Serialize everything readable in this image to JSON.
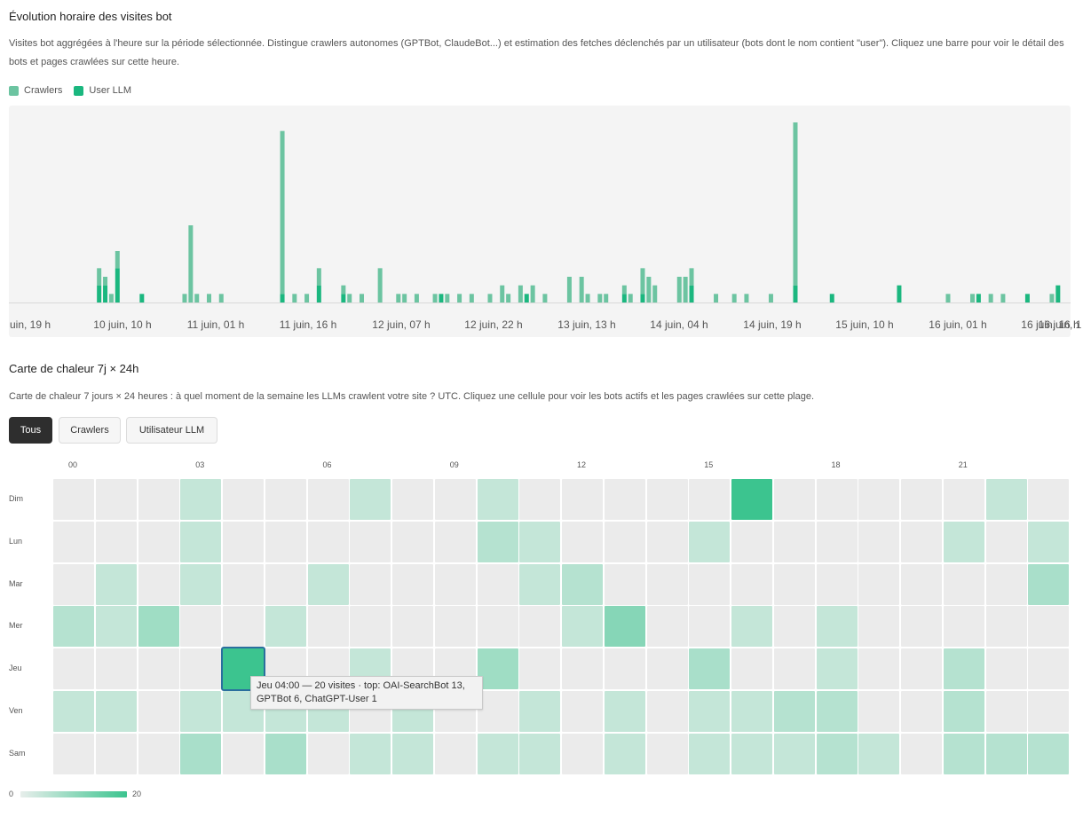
{
  "hourly": {
    "title": "Évolution horaire des visites bot",
    "description": "Visites bot aggrégées à l'heure sur la période sélectionnée. Distingue crawlers autonomes (GPTBot, ClaudeBot...) et estimation des fetches déclenchés par un utilisateur (bots dont le nom contient \"user\"). Cliquez une barre pour voir le détail des bots et pages crawlées sur cette heure.",
    "legend": [
      {
        "label": "Crawlers",
        "color": "#6cc4a1"
      },
      {
        "label": "User LLM",
        "color": "#1bb77f"
      }
    ],
    "ticks": [
      "uin, 19 h",
      "10 juin, 10 h",
      "11 juin, 01 h",
      "11 juin, 16 h",
      "12 juin, 07 h",
      "12 juin, 22 h",
      "13 juin, 13 h",
      "14 juin, 04 h",
      "14 juin, 19 h",
      "15 juin, 10 h",
      "16 juin, 01 h",
      "16 juin, 16 h",
      "16 juin, 1"
    ]
  },
  "chart_data": {
    "type": "bar",
    "title": "Évolution horaire des visites bot",
    "stacked": true,
    "x_unit": "hour index from 9 juin 19 h",
    "hours_total": 170,
    "series": [
      {
        "name": "Crawlers",
        "color": "#6cc4a1",
        "points": [
          [
            7,
            2
          ],
          [
            8,
            1
          ],
          [
            9,
            1
          ],
          [
            10,
            2
          ],
          [
            21,
            1
          ],
          [
            22,
            9
          ],
          [
            23,
            1
          ],
          [
            25,
            1
          ],
          [
            27,
            1
          ],
          [
            37,
            19
          ],
          [
            39,
            1
          ],
          [
            41,
            1
          ],
          [
            43,
            2
          ],
          [
            47,
            1
          ],
          [
            48,
            1
          ],
          [
            50,
            1
          ],
          [
            53,
            4
          ],
          [
            56,
            1
          ],
          [
            57,
            1
          ],
          [
            59,
            1
          ],
          [
            62,
            1
          ],
          [
            64,
            1
          ],
          [
            66,
            1
          ],
          [
            68,
            1
          ],
          [
            71,
            1
          ],
          [
            73,
            2
          ],
          [
            74,
            1
          ],
          [
            76,
            2
          ],
          [
            78,
            2
          ],
          [
            80,
            1
          ],
          [
            84,
            3
          ],
          [
            86,
            3
          ],
          [
            87,
            1
          ],
          [
            89,
            1
          ],
          [
            90,
            1
          ],
          [
            93,
            1
          ],
          [
            94,
            1
          ],
          [
            96,
            3
          ],
          [
            97,
            3
          ],
          [
            98,
            2
          ],
          [
            102,
            3
          ],
          [
            103,
            3
          ],
          [
            104,
            2
          ],
          [
            108,
            1
          ],
          [
            111,
            1
          ],
          [
            113,
            1
          ],
          [
            117,
            1
          ],
          [
            121,
            19
          ],
          [
            146,
            1
          ],
          [
            150,
            1
          ],
          [
            153,
            1
          ],
          [
            155,
            1
          ],
          [
            163,
            1
          ]
        ]
      },
      {
        "name": "User LLM",
        "color": "#1bb77f",
        "points": [
          [
            7,
            2
          ],
          [
            8,
            2
          ],
          [
            10,
            4
          ],
          [
            14,
            1
          ],
          [
            37,
            1
          ],
          [
            43,
            2
          ],
          [
            47,
            1
          ],
          [
            63,
            1
          ],
          [
            77,
            1
          ],
          [
            93,
            1
          ],
          [
            96,
            1
          ],
          [
            104,
            2
          ],
          [
            121,
            2
          ],
          [
            127,
            1
          ],
          [
            138,
            2
          ],
          [
            151,
            1
          ],
          [
            159,
            1
          ],
          [
            164,
            2
          ]
        ]
      }
    ],
    "ylim": [
      0,
      21
    ],
    "grid": false,
    "legend": "top-left"
  },
  "heatmap": {
    "title": "Carte de chaleur 7j × 24h",
    "description": "Carte de chaleur 7 jours × 24 heures : à quel moment de la semaine les LLMs crawlent votre site ? UTC. Cliquez une cellule pour voir les bots actifs et les pages crawlées sur cette plage.",
    "filters": [
      "Tous",
      "Crawlers",
      "Utilisateur LLM"
    ],
    "active_filter": "Tous",
    "hour_labels": [
      "00",
      "03",
      "06",
      "09",
      "12",
      "15",
      "18",
      "21"
    ],
    "days": [
      "Dim",
      "Lun",
      "Mar",
      "Mer",
      "Jeu",
      "Ven",
      "Sam"
    ],
    "max": 20,
    "values": [
      [
        0,
        0,
        0,
        1,
        0,
        0,
        0,
        1,
        0,
        0,
        1,
        0,
        0,
        0,
        0,
        0,
        20,
        0,
        0,
        0,
        0,
        0,
        1,
        0
      ],
      [
        0,
        0,
        0,
        1,
        0,
        0,
        0,
        0,
        0,
        0,
        2,
        1,
        0,
        0,
        0,
        1,
        0,
        0,
        0,
        0,
        0,
        1,
        0,
        1
      ],
      [
        0,
        1,
        0,
        1,
        0,
        0,
        1,
        0,
        0,
        0,
        0,
        1,
        2,
        0,
        0,
        0,
        0,
        0,
        0,
        0,
        0,
        0,
        0,
        3
      ],
      [
        2,
        1,
        4,
        0,
        0,
        1,
        0,
        0,
        0,
        0,
        0,
        0,
        1,
        7,
        0,
        0,
        1,
        0,
        1,
        0,
        0,
        0,
        0,
        0
      ],
      [
        0,
        0,
        0,
        0,
        20,
        0,
        0,
        1,
        0,
        0,
        4,
        0,
        0,
        0,
        0,
        3,
        0,
        0,
        1,
        0,
        0,
        2,
        0,
        0
      ],
      [
        1,
        1,
        0,
        1,
        1,
        1,
        1,
        0,
        1,
        0,
        0,
        1,
        0,
        1,
        0,
        1,
        1,
        2,
        2,
        0,
        0,
        2,
        0,
        0
      ],
      [
        0,
        0,
        0,
        3,
        0,
        3,
        0,
        1,
        1,
        0,
        1,
        1,
        0,
        1,
        0,
        1,
        1,
        1,
        2,
        1,
        0,
        2,
        2,
        2
      ]
    ],
    "selected": {
      "day": 4,
      "hour": 4
    },
    "tooltip_line1": "Jeu 04:00 — 20 visites · top: OAI-SearchBot 13,",
    "tooltip_line2": "GPTBot 6, ChatGPT-User 1",
    "scale_min": "0",
    "scale_max": "20",
    "empty_color": "#ebebeb",
    "accent_color": "#3cc48f"
  }
}
